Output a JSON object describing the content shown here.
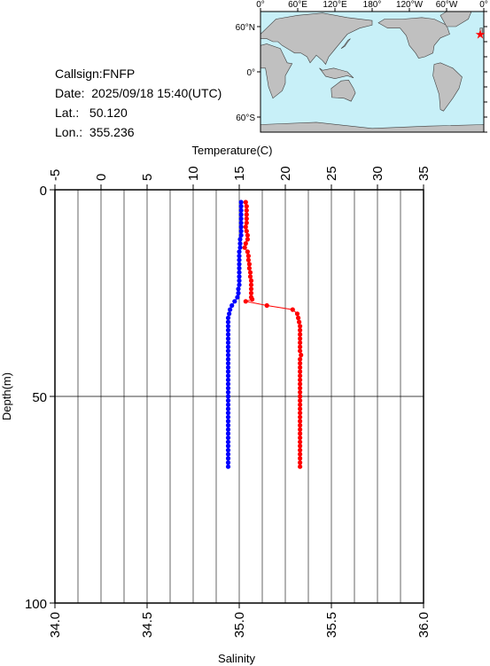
{
  "info": {
    "callsign": "Callsign:FNFP",
    "date": "Date:  2025/09/18 15:40(UTC)",
    "lat": "Lat.:   50.120",
    "lon": "Lon.:  355.236"
  },
  "map": {
    "lon_labels": [
      "0°",
      "60°E",
      "120°E",
      "180°",
      "120°W",
      "60°W",
      "0°"
    ],
    "lat_labels": [
      "60°N",
      "0°",
      "60°S"
    ],
    "ocean_color": "#c8f0f8",
    "land_color": "#c0c0c0",
    "marker_color": "#ff0000",
    "station_lon": 355.236,
    "station_lat": 50.12
  },
  "chart_data": {
    "type": "line",
    "top_axis": {
      "label": "Temperature(C)",
      "range": [
        -5,
        35
      ],
      "ticks": [
        "-5",
        "0",
        "5",
        "10",
        "15",
        "20",
        "25",
        "30",
        "35"
      ]
    },
    "bottom_axis": {
      "label": "Salinity",
      "range": [
        34.0,
        36.0
      ],
      "ticks": [
        "34.0",
        "34.5",
        "35.0",
        "35.5",
        "36.0"
      ]
    },
    "y_axis": {
      "label": "Depth(m)",
      "range": [
        0,
        100
      ],
      "inverted": true,
      "ticks": [
        "0",
        "50",
        "100"
      ]
    },
    "grid": true,
    "series": [
      {
        "variable": "temperature",
        "color": "#ff0000",
        "points": [
          [
            15.7,
            3
          ],
          [
            15.8,
            4
          ],
          [
            15.8,
            5
          ],
          [
            15.8,
            6
          ],
          [
            15.8,
            7
          ],
          [
            15.8,
            8
          ],
          [
            15.7,
            9
          ],
          [
            15.8,
            10
          ],
          [
            15.9,
            11
          ],
          [
            15.9,
            12
          ],
          [
            15.7,
            13
          ],
          [
            15.6,
            14
          ],
          [
            15.9,
            15
          ],
          [
            16.0,
            16
          ],
          [
            16.0,
            17
          ],
          [
            16.1,
            18
          ],
          [
            16.1,
            19
          ],
          [
            16.2,
            20
          ],
          [
            16.2,
            21
          ],
          [
            16.3,
            22
          ],
          [
            16.3,
            23
          ],
          [
            16.3,
            24
          ],
          [
            16.3,
            25
          ],
          [
            16.3,
            26
          ],
          [
            16.4,
            26.5
          ],
          [
            15.7,
            27
          ],
          [
            18.0,
            28
          ],
          [
            20.8,
            29
          ],
          [
            21.3,
            30
          ],
          [
            21.4,
            31
          ],
          [
            21.5,
            32
          ],
          [
            21.6,
            33
          ],
          [
            21.6,
            34
          ],
          [
            21.6,
            35
          ],
          [
            21.6,
            36
          ],
          [
            21.6,
            37
          ],
          [
            21.6,
            38
          ],
          [
            21.6,
            39
          ],
          [
            21.7,
            40
          ],
          [
            21.6,
            41
          ],
          [
            21.6,
            42
          ],
          [
            21.6,
            43
          ],
          [
            21.6,
            44
          ],
          [
            21.6,
            45
          ],
          [
            21.6,
            46
          ],
          [
            21.6,
            47
          ],
          [
            21.6,
            48
          ],
          [
            21.6,
            49
          ],
          [
            21.6,
            50
          ],
          [
            21.6,
            51
          ],
          [
            21.6,
            52
          ],
          [
            21.6,
            53
          ],
          [
            21.6,
            54
          ],
          [
            21.6,
            55
          ],
          [
            21.6,
            56
          ],
          [
            21.6,
            57
          ],
          [
            21.6,
            58
          ],
          [
            21.6,
            59
          ],
          [
            21.6,
            60
          ],
          [
            21.6,
            61
          ],
          [
            21.6,
            62
          ],
          [
            21.6,
            63
          ],
          [
            21.6,
            64
          ],
          [
            21.6,
            65
          ],
          [
            21.6,
            66
          ],
          [
            21.6,
            67
          ]
        ]
      },
      {
        "variable": "salinity",
        "color": "#0000ff",
        "points": [
          [
            35.01,
            3
          ],
          [
            35.01,
            4
          ],
          [
            35.01,
            5
          ],
          [
            35.01,
            6
          ],
          [
            35.01,
            7
          ],
          [
            35.01,
            8
          ],
          [
            35.01,
            9
          ],
          [
            35.01,
            10
          ],
          [
            35.01,
            11
          ],
          [
            35.005,
            12
          ],
          [
            35.005,
            13
          ],
          [
            35.005,
            14
          ],
          [
            35.0,
            15
          ],
          [
            35.0,
            16
          ],
          [
            35.0,
            17
          ],
          [
            35.0,
            18
          ],
          [
            35.0,
            19
          ],
          [
            35.0,
            20
          ],
          [
            35.0,
            21
          ],
          [
            35.0,
            22
          ],
          [
            35.0,
            23
          ],
          [
            34.995,
            24
          ],
          [
            34.995,
            25
          ],
          [
            34.99,
            26
          ],
          [
            34.975,
            27
          ],
          [
            34.96,
            28
          ],
          [
            34.95,
            29
          ],
          [
            34.945,
            30
          ],
          [
            34.94,
            31
          ],
          [
            34.94,
            32
          ],
          [
            34.94,
            33
          ],
          [
            34.94,
            34
          ],
          [
            34.94,
            35
          ],
          [
            34.94,
            36
          ],
          [
            34.94,
            37
          ],
          [
            34.94,
            38
          ],
          [
            34.94,
            39
          ],
          [
            34.94,
            40
          ],
          [
            34.94,
            41
          ],
          [
            34.94,
            42
          ],
          [
            34.94,
            43
          ],
          [
            34.94,
            44
          ],
          [
            34.94,
            45
          ],
          [
            34.94,
            46
          ],
          [
            34.94,
            47
          ],
          [
            34.94,
            48
          ],
          [
            34.94,
            49
          ],
          [
            34.94,
            50
          ],
          [
            34.94,
            51
          ],
          [
            34.94,
            52
          ],
          [
            34.94,
            53
          ],
          [
            34.94,
            54
          ],
          [
            34.94,
            55
          ],
          [
            34.94,
            56
          ],
          [
            34.94,
            57
          ],
          [
            34.94,
            58
          ],
          [
            34.94,
            59
          ],
          [
            34.94,
            60
          ],
          [
            34.94,
            61
          ],
          [
            34.94,
            62
          ],
          [
            34.94,
            63
          ],
          [
            34.94,
            64
          ],
          [
            34.94,
            65
          ],
          [
            34.94,
            66
          ],
          [
            34.94,
            67
          ]
        ]
      }
    ]
  }
}
